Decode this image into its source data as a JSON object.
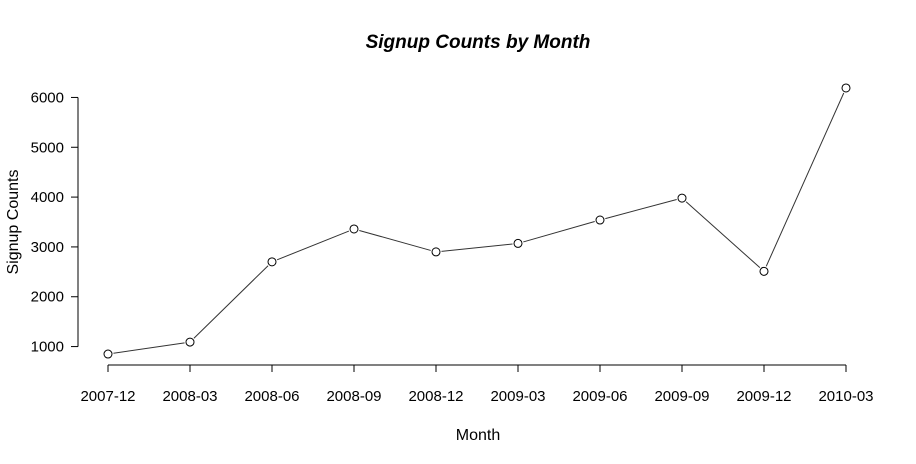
{
  "chart_data": {
    "type": "line",
    "title": "Signup Counts by Month",
    "xlabel": "Month",
    "ylabel": "Signup Counts",
    "categories": [
      "2007-12",
      "2008-03",
      "2008-06",
      "2008-09",
      "2008-12",
      "2009-03",
      "2009-06",
      "2009-09",
      "2009-12",
      "2010-03"
    ],
    "series": [
      {
        "values": [
          850,
          1090,
          2700,
          3360,
          2900,
          3070,
          3540,
          3980,
          2510,
          6190
        ]
      }
    ],
    "yticks": [
      1000,
      2000,
      3000,
      4000,
      5000,
      6000
    ],
    "ylim": [
      590,
      6350
    ],
    "grid": false,
    "marker": "open-circle"
  }
}
